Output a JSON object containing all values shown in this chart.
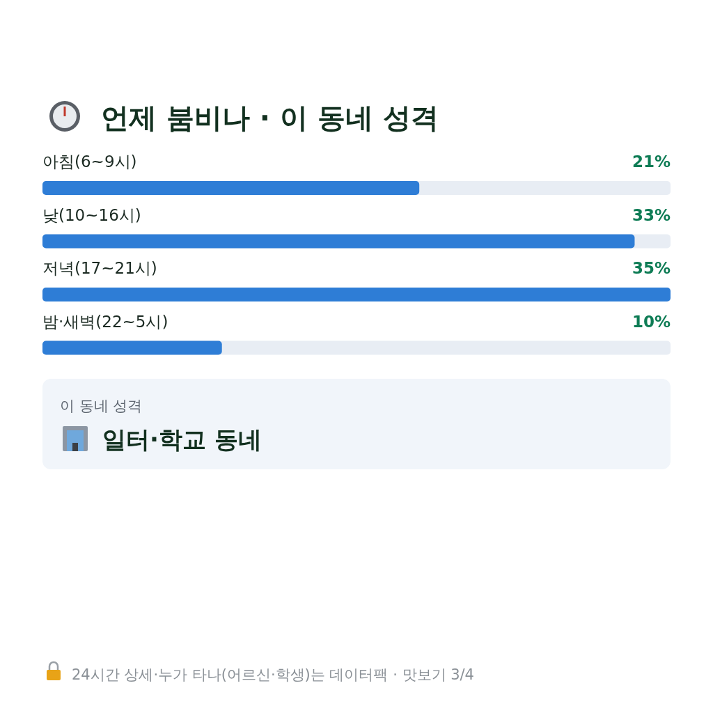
{
  "chart_data": [
    {
      "type": "bar",
      "orientation": "horizontal",
      "title": "언제 붐비나 · 이 동네 성격",
      "categories": [
        "아침(6~9시)",
        "낮(10~16시)",
        "저녁(17~21시)",
        "밤·새벽(22~5시)"
      ],
      "values": [
        21,
        33,
        35,
        10
      ],
      "value_labels": [
        "21%",
        "33%",
        "35%",
        "10%"
      ],
      "color": "#2e7dd6",
      "annotations": [
        "24시간 상세·누가 타나(어르신·학생)는 데이터팩 · 맛보기 3/4"
      ]
    },
    {
      "type": "other",
      "title": "이 동네 성격",
      "annotations": [
        "일터·학교 동네"
      ]
    }
  ]
}
